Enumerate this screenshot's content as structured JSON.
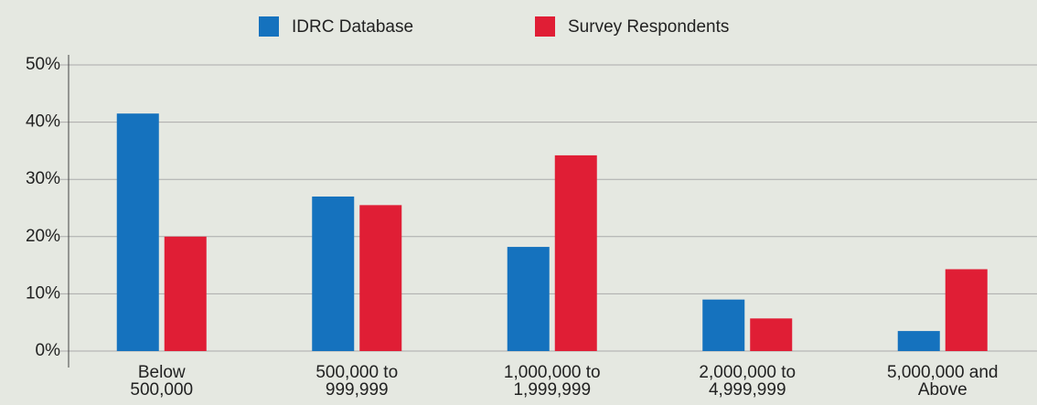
{
  "chart_data": {
    "type": "bar",
    "categories": [
      "Below 500,000",
      "500,000 to 999,999",
      "1,000,000 to 1,999,999",
      "2,000,000 to 4,999,999",
      "5,000,000 and Above"
    ],
    "series": [
      {
        "name": "IDRC Database",
        "color": "#1572be",
        "values": [
          41.5,
          27,
          18.2,
          9,
          3.5
        ]
      },
      {
        "name": "Survey Respondents",
        "color": "#e01e35",
        "values": [
          20,
          25.5,
          34.2,
          5.7,
          14.3
        ]
      }
    ],
    "ylim": [
      0,
      50
    ],
    "yticks": [
      {
        "value": 0,
        "label": "0%"
      },
      {
        "value": 10,
        "label": "10%"
      },
      {
        "value": 20,
        "label": "20%"
      },
      {
        "value": 30,
        "label": "30%"
      },
      {
        "value": 40,
        "label": "40%"
      },
      {
        "value": 50,
        "label": "50%"
      }
    ],
    "grid": true,
    "legend": "top"
  }
}
